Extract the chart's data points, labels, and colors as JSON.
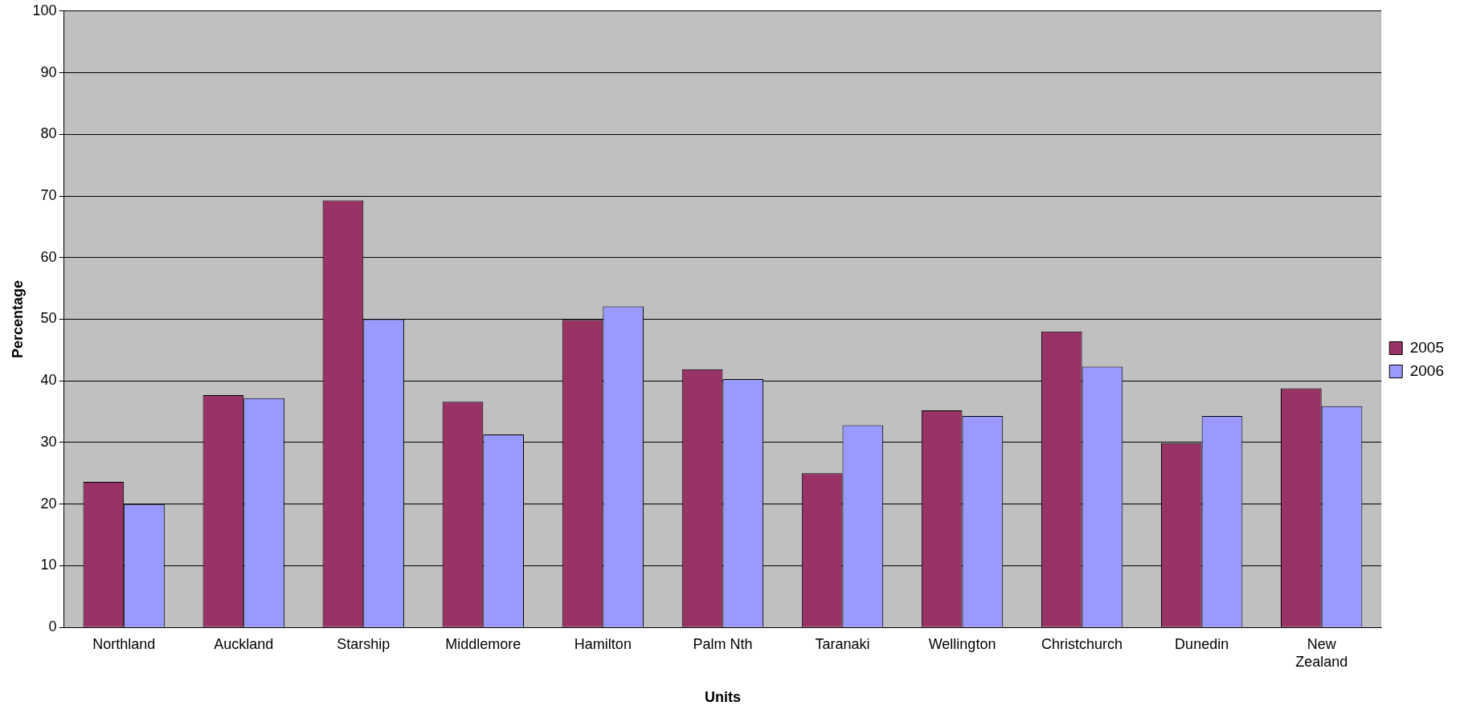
{
  "chart_data": {
    "type": "bar",
    "xlabel": "Units",
    "ylabel": "Percentage",
    "categories": [
      "Northland",
      "Auckland",
      "Starship",
      "Middlemore",
      "Hamilton",
      "Palm Nth",
      "Taranaki",
      "Wellington",
      "Christchurch",
      "Dunedin",
      "New Zealand"
    ],
    "series": [
      {
        "name": "2005",
        "color": "#993366",
        "values": [
          23.6,
          37.7,
          69.3,
          36.6,
          49.9,
          41.9,
          25,
          35.2,
          48,
          29.9,
          38.8
        ]
      },
      {
        "name": "2006",
        "color": "#9999ff",
        "values": [
          20,
          37.2,
          50,
          31.3,
          52.1,
          40.3,
          32.8,
          34.3,
          42.3,
          34.3,
          35.9
        ]
      }
    ],
    "ylim": [
      0,
      100
    ],
    "yticks": [
      0,
      10,
      20,
      30,
      40,
      50,
      60,
      70,
      80,
      90,
      100
    ],
    "grid": "y",
    "legend": "right"
  }
}
